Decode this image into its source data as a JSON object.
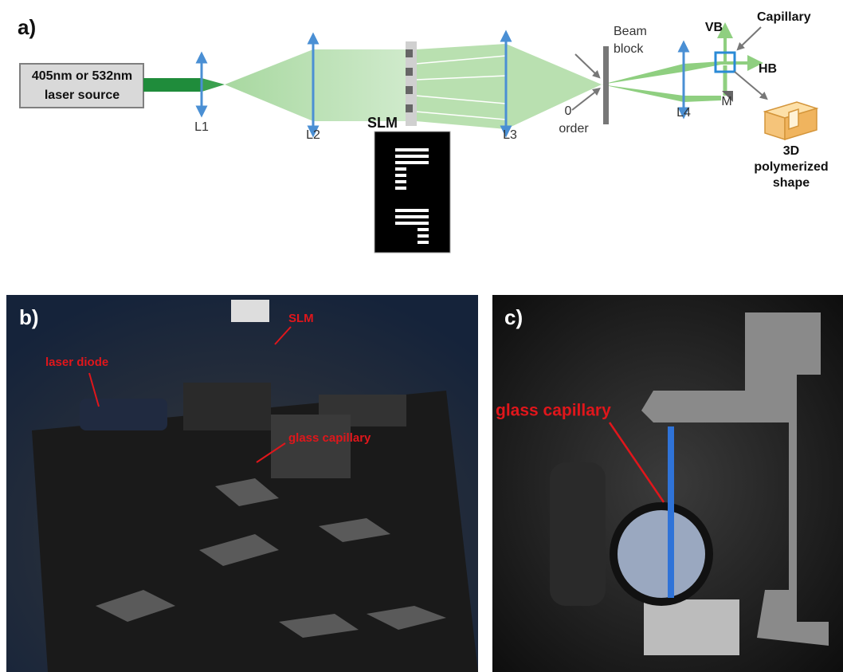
{
  "panel_a": {
    "label": "a)",
    "source": {
      "lines": [
        "405nm or 532nm",
        "laser source"
      ]
    },
    "lenses": [
      "L1",
      "L2",
      "L3",
      "L4"
    ],
    "slm": "SLM",
    "beam_block": {
      "lines": [
        "Beam",
        "block"
      ]
    },
    "zero_order": {
      "lines": [
        "0",
        "order"
      ]
    },
    "vb": "VB",
    "hb": "HB",
    "capillary": "Capillary",
    "mirror": "M",
    "shape": {
      "lines": [
        "3D",
        "polymerized",
        "shape"
      ]
    }
  },
  "panel_b": {
    "label": "b)",
    "annotations": [
      "laser diode",
      "SLM",
      "glass capillary"
    ]
  },
  "panel_c": {
    "label": "c)",
    "annotations": [
      "glass capillary"
    ]
  }
}
